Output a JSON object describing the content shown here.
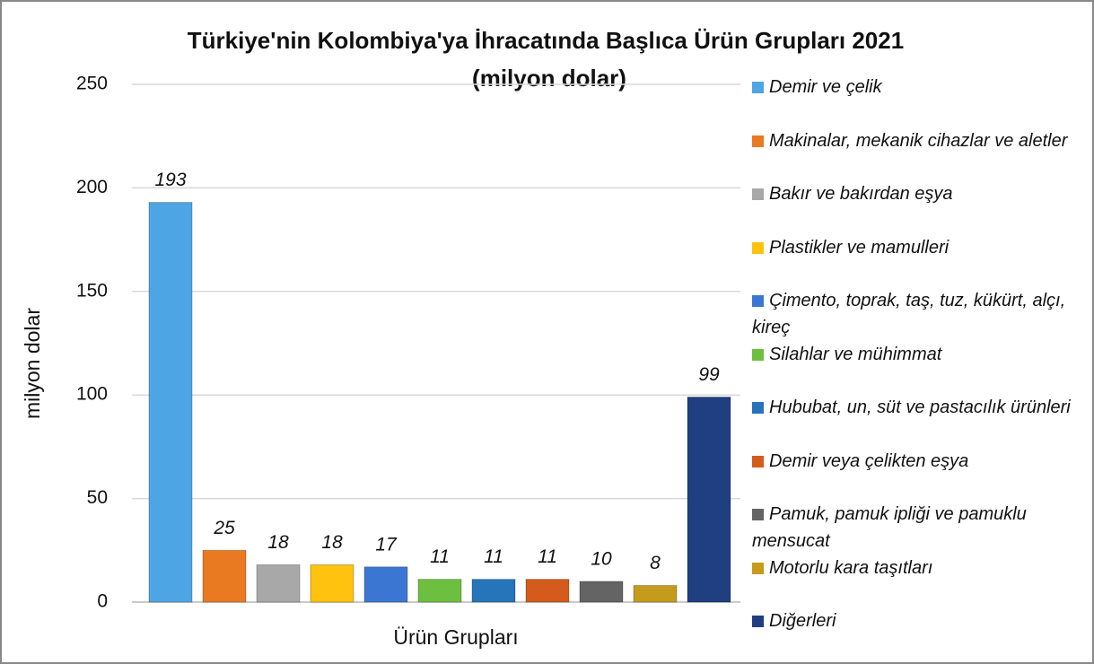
{
  "chart_data": {
    "type": "bar",
    "title": "Türkiye'nin Kolombiya'ya İhracatında Başlıca Ürün Grupları 2021",
    "subtitle": "(milyon dolar)",
    "x_label": "Ürün Grupları",
    "y_label": "milyon dolar",
    "ylim": [
      0,
      250
    ],
    "yticks": [
      0,
      50,
      100,
      150,
      200,
      250
    ],
    "grid": true,
    "legend": "right",
    "series": [
      {
        "name": "Demir ve çelik",
        "color": "#4ea5e3",
        "values": [
          193
        ]
      },
      {
        "name": "Makinalar, mekanik cihazlar ve aletler",
        "color": "#ea7a22",
        "values": [
          25
        ]
      },
      {
        "name": "Bakır ve bakırdan eşya",
        "color": "#a8a8a8",
        "values": [
          18
        ]
      },
      {
        "name": "Plastikler ve mamulleri",
        "color": "#ffc20e",
        "values": [
          18
        ]
      },
      {
        "name": "Çimento, toprak, taş, tuz, kükürt, alçı, kireç",
        "color": "#3b77d2",
        "values": [
          17
        ]
      },
      {
        "name": "Silahlar ve mühimmat",
        "color": "#6dbf40",
        "values": [
          11
        ]
      },
      {
        "name": "Hububat, un, süt ve pastacılık ürünleri",
        "color": "#2674ba",
        "values": [
          11
        ]
      },
      {
        "name": "Demir veya çelikten eşya",
        "color": "#d45b1b",
        "values": [
          11
        ]
      },
      {
        "name": "Pamuk, pamuk ipliği ve pamuklu mensucat",
        "color": "#646464",
        "values": [
          10
        ]
      },
      {
        "name": "Motorlu kara taşıtları",
        "color": "#c59b1c",
        "values": [
          8
        ]
      },
      {
        "name": "Diğerleri",
        "color": "#1f3f80",
        "values": [
          99
        ]
      }
    ]
  }
}
